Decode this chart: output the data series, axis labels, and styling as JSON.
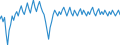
{
  "values": [
    0,
    2,
    -2,
    1,
    -10,
    -18,
    -8,
    -4,
    2,
    -1,
    3,
    5,
    2,
    6,
    9,
    5,
    3,
    7,
    11,
    7,
    4,
    9,
    13,
    8,
    5,
    9,
    12,
    8,
    5,
    3,
    -2,
    -8,
    -14,
    -6,
    -2,
    3,
    6,
    4,
    2,
    5,
    3,
    6,
    8,
    5,
    2,
    5,
    8,
    4,
    2,
    6,
    4,
    2,
    5,
    7,
    3,
    6,
    4,
    2,
    5,
    3,
    6,
    8,
    4,
    2,
    5,
    7,
    3,
    5,
    3,
    6,
    4,
    2,
    5,
    3,
    6,
    4,
    2,
    4,
    6,
    3
  ],
  "line_color": "#2b8ccc",
  "background_color": "#ffffff",
  "linewidth": 0.8
}
